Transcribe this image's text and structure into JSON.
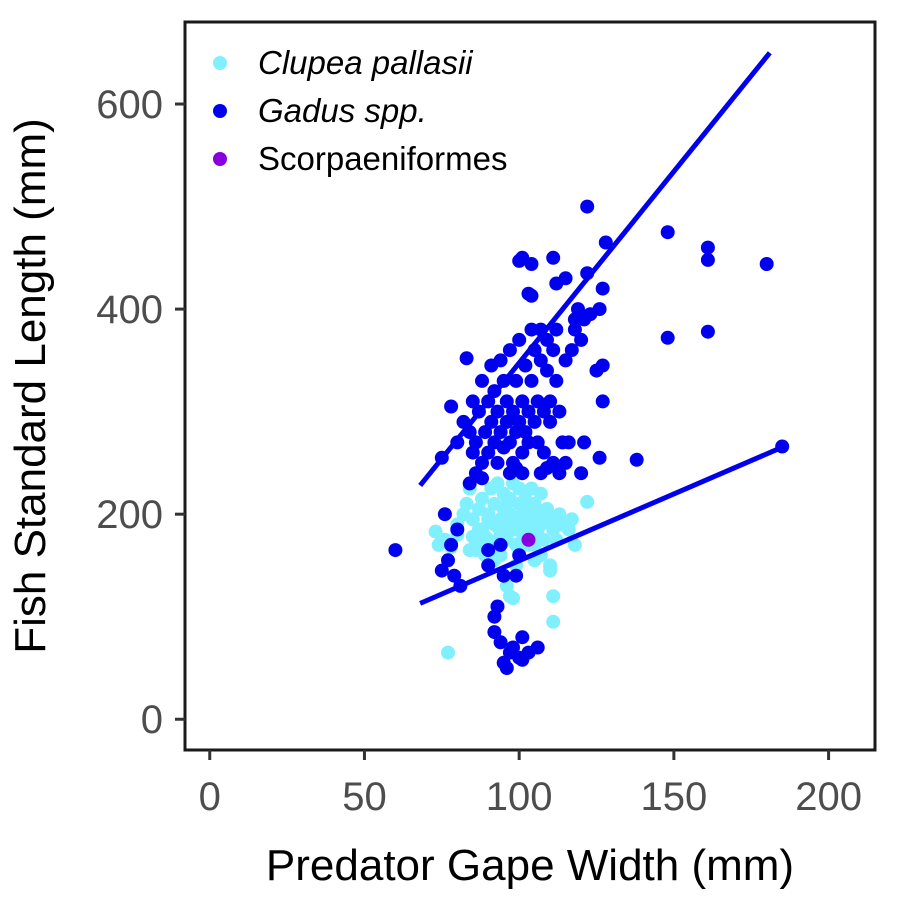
{
  "chart_data": {
    "type": "scatter",
    "xlabel": "Predator Gape Width (mm)",
    "ylabel": "Fish Standard Length (mm)",
    "xlim": [
      -8,
      215
    ],
    "ylim": [
      -30,
      680
    ],
    "xticks": [
      0,
      50,
      100,
      150,
      200
    ],
    "yticks": [
      0,
      200,
      400,
      600
    ],
    "grid": false,
    "legend_position": "top-left",
    "series": [
      {
        "name": "Clupea pallasii",
        "italic": true,
        "color": "#80F0FF",
        "points": [
          [
            73,
            183
          ],
          [
            76,
            175
          ],
          [
            78,
            168
          ],
          [
            80,
            190
          ],
          [
            82,
            200
          ],
          [
            83,
            210
          ],
          [
            84,
            225
          ],
          [
            85,
            195
          ],
          [
            85,
            178
          ],
          [
            86,
            170
          ],
          [
            87,
            205
          ],
          [
            88,
            215
          ],
          [
            88,
            185
          ],
          [
            89,
            160
          ],
          [
            90,
            200
          ],
          [
            90,
            175
          ],
          [
            91,
            225
          ],
          [
            92,
            190
          ],
          [
            92,
            210
          ],
          [
            93,
            170
          ],
          [
            93,
            230
          ],
          [
            94,
            195
          ],
          [
            94,
            180
          ],
          [
            95,
            205
          ],
          [
            95,
            220
          ],
          [
            96,
            175
          ],
          [
            96,
            190
          ],
          [
            97,
            215
          ],
          [
            97,
            200
          ],
          [
            98,
            185
          ],
          [
            98,
            230
          ],
          [
            99,
            195
          ],
          [
            99,
            170
          ],
          [
            100,
            210
          ],
          [
            100,
            225
          ],
          [
            100,
            185
          ],
          [
            101,
            200
          ],
          [
            101,
            175
          ],
          [
            102,
            190
          ],
          [
            102,
            215
          ],
          [
            103,
            205
          ],
          [
            103,
            180
          ],
          [
            104,
            195
          ],
          [
            104,
            225
          ],
          [
            105,
            170
          ],
          [
            105,
            210
          ],
          [
            106,
            200
          ],
          [
            106,
            185
          ],
          [
            107,
            220
          ],
          [
            107,
            190
          ],
          [
            108,
            175
          ],
          [
            109,
            205
          ],
          [
            110,
            195
          ],
          [
            110,
            150
          ],
          [
            111,
            185
          ],
          [
            112,
            195
          ],
          [
            112,
            175
          ],
          [
            113,
            200
          ],
          [
            114,
            190
          ],
          [
            116,
            185
          ],
          [
            117,
            195
          ],
          [
            118,
            170
          ],
          [
            122,
            212
          ],
          [
            86,
            165
          ],
          [
            87,
            185
          ],
          [
            90,
            195
          ],
          [
            92,
            155
          ],
          [
            94,
            160
          ],
          [
            96,
            130
          ],
          [
            97,
            120
          ],
          [
            98,
            118
          ],
          [
            99,
            150
          ],
          [
            105,
            155
          ],
          [
            107,
            160
          ],
          [
            110,
            145
          ],
          [
            111,
            120
          ],
          [
            111,
            95
          ],
          [
            77,
            65
          ],
          [
            74,
            170
          ],
          [
            80,
            180
          ],
          [
            84,
            165
          ],
          [
            89,
            178
          ],
          [
            93,
            188
          ],
          [
            96,
            210
          ],
          [
            100,
            165
          ],
          [
            103,
            170
          ],
          [
            106,
            175
          ]
        ]
      },
      {
        "name": "Gadus spp.",
        "italic": true,
        "color": "#0000EE",
        "points": [
          [
            60,
            165
          ],
          [
            75,
            145
          ],
          [
            77,
            155
          ],
          [
            76,
            200
          ],
          [
            78,
            170
          ],
          [
            79,
            140
          ],
          [
            80,
            185
          ],
          [
            81,
            130
          ],
          [
            75,
            255
          ],
          [
            78,
            305
          ],
          [
            80,
            270
          ],
          [
            82,
            290
          ],
          [
            83,
            352
          ],
          [
            84,
            280
          ],
          [
            85,
            260
          ],
          [
            85,
            310
          ],
          [
            86,
            270
          ],
          [
            87,
            300
          ],
          [
            88,
            250
          ],
          [
            88,
            330
          ],
          [
            89,
            280
          ],
          [
            90,
            310
          ],
          [
            90,
            260
          ],
          [
            91,
            345
          ],
          [
            91,
            290
          ],
          [
            92,
            270
          ],
          [
            92,
            320
          ],
          [
            93,
            250
          ],
          [
            93,
            300
          ],
          [
            94,
            280
          ],
          [
            94,
            350
          ],
          [
            95,
            265
          ],
          [
            95,
            330
          ],
          [
            96,
            290
          ],
          [
            96,
            310
          ],
          [
            97,
            270
          ],
          [
            97,
            360
          ],
          [
            98,
            300
          ],
          [
            98,
            250
          ],
          [
            99,
            280
          ],
          [
            99,
            330
          ],
          [
            100,
            290
          ],
          [
            100,
            370
          ],
          [
            101,
            260
          ],
          [
            101,
            310
          ],
          [
            102,
            280
          ],
          [
            102,
            345
          ],
          [
            103,
            270
          ],
          [
            103,
            300
          ],
          [
            104,
            330
          ],
          [
            104,
            380
          ],
          [
            105,
            290
          ],
          [
            105,
            360
          ],
          [
            106,
            310
          ],
          [
            106,
            270
          ],
          [
            107,
            350
          ],
          [
            107,
            380
          ],
          [
            108,
            300
          ],
          [
            108,
            260
          ],
          [
            109,
            340
          ],
          [
            109,
            370
          ],
          [
            110,
            290
          ],
          [
            110,
            310
          ],
          [
            111,
            360
          ],
          [
            111,
            250
          ],
          [
            112,
            380
          ],
          [
            112,
            330
          ],
          [
            113,
            300
          ],
          [
            114,
            270
          ],
          [
            115,
            350
          ],
          [
            116,
            270
          ],
          [
            117,
            360
          ],
          [
            118,
            390
          ],
          [
            118,
            380
          ],
          [
            119,
            400
          ],
          [
            120,
            370
          ],
          [
            121,
            390
          ],
          [
            121,
            270
          ],
          [
            122,
            500
          ],
          [
            122,
            435
          ],
          [
            123,
            395
          ],
          [
            125,
            340
          ],
          [
            126,
            255
          ],
          [
            126,
            400
          ],
          [
            127,
            310
          ],
          [
            127,
            420
          ],
          [
            127,
            345
          ],
          [
            128,
            465
          ],
          [
            138,
            253
          ],
          [
            148,
            475
          ],
          [
            148,
            372
          ],
          [
            161,
            460
          ],
          [
            161,
            448
          ],
          [
            161,
            378
          ],
          [
            180,
            444
          ],
          [
            185,
            266
          ],
          [
            100,
            447
          ],
          [
            101,
            450
          ],
          [
            104,
            444
          ],
          [
            104,
            413
          ],
          [
            111,
            450
          ],
          [
            112,
            425
          ],
          [
            115,
            430
          ],
          [
            103,
            415
          ],
          [
            92,
            100
          ],
          [
            93,
            110
          ],
          [
            94,
            75
          ],
          [
            95,
            55
          ],
          [
            96,
            50
          ],
          [
            97,
            65
          ],
          [
            98,
            70
          ],
          [
            100,
            60
          ],
          [
            101,
            58
          ],
          [
            101,
            80
          ],
          [
            103,
            65
          ],
          [
            106,
            70
          ],
          [
            92,
            85
          ],
          [
            95,
            140
          ],
          [
            99,
            140
          ],
          [
            100,
            160
          ],
          [
            90,
            165
          ],
          [
            90,
            150
          ],
          [
            94,
            170
          ],
          [
            84,
            230
          ],
          [
            86,
            240
          ],
          [
            88,
            235
          ],
          [
            97,
            240
          ],
          [
            99,
            245
          ],
          [
            101,
            240
          ],
          [
            107,
            240
          ],
          [
            109,
            245
          ],
          [
            113,
            240
          ],
          [
            115,
            250
          ],
          [
            120,
            240
          ]
        ]
      },
      {
        "name": "Scorpaeniformes",
        "italic": false,
        "color": "#8800DD",
        "points": [
          [
            103,
            175
          ]
        ]
      }
    ],
    "fit_lines": [
      {
        "series": "Gadus spp.",
        "color": "#0000EE",
        "points": [
          [
            68,
            228
          ],
          [
            181,
            650
          ]
        ]
      },
      {
        "series": "Clupea pallasii",
        "color": "#0000EE",
        "points": [
          [
            68,
            113
          ],
          [
            184,
            264
          ]
        ]
      }
    ]
  }
}
